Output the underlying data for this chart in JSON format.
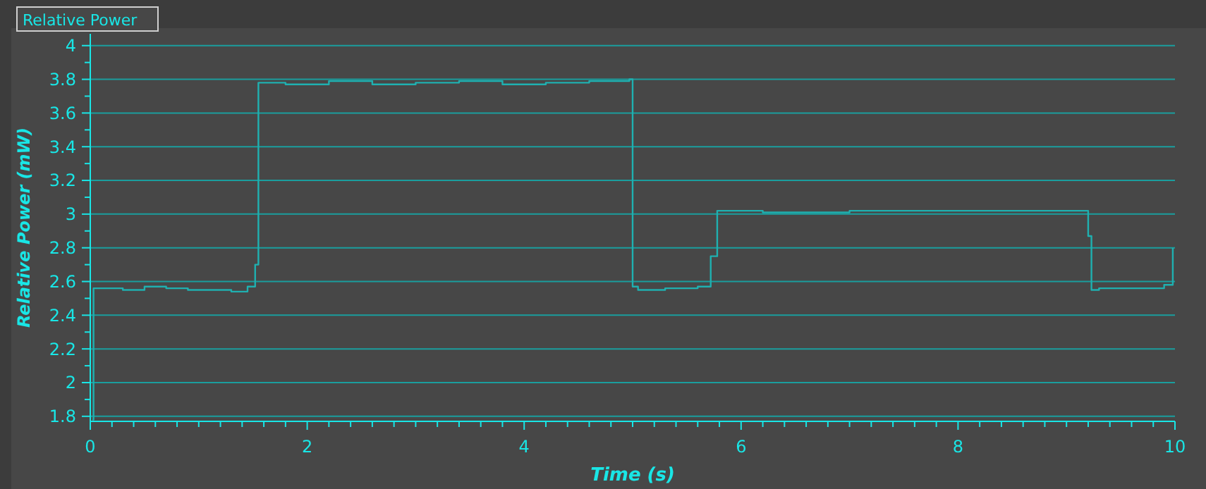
{
  "chart_data": {
    "type": "step",
    "title": "Relative Power",
    "xlabel": "Time  (s)",
    "ylabel": "Relative Power  (mW)",
    "x": [
      0.02,
      0.03,
      0.3,
      0.5,
      0.7,
      0.9,
      1.1,
      1.3,
      1.45,
      1.52,
      1.55,
      1.8,
      2.2,
      2.6,
      3.0,
      3.4,
      3.8,
      4.2,
      4.6,
      4.97,
      5.0,
      5.05,
      5.3,
      5.6,
      5.72,
      5.78,
      6.2,
      7.0,
      8.0,
      9.2,
      9.23,
      9.3,
      9.6,
      9.9,
      9.98
    ],
    "series": [
      {
        "color": "#1fb0b0",
        "values": [
          1.78,
          2.56,
          2.55,
          2.57,
          2.56,
          2.55,
          2.55,
          2.54,
          2.57,
          2.7,
          3.78,
          3.77,
          3.79,
          3.77,
          3.78,
          3.79,
          3.77,
          3.78,
          3.79,
          3.8,
          2.57,
          2.55,
          2.56,
          2.57,
          2.75,
          3.02,
          3.01,
          3.02,
          3.02,
          2.87,
          2.55,
          2.56,
          2.56,
          2.58,
          2.8
        ]
      }
    ],
    "xlim": [
      0,
      10
    ],
    "ylim": [
      1.77,
      4.07
    ],
    "xticks": [
      0,
      {
        "value": 0.2,
        "label": null
      },
      {
        "value": 0.4,
        "label": null
      },
      {
        "value": 0.6,
        "label": null
      },
      {
        "value": 0.8,
        "label": null
      },
      {
        "value": 1,
        "label": null
      },
      {
        "value": 1.2,
        "label": null
      },
      {
        "value": 1.4,
        "label": null
      },
      {
        "value": 1.6,
        "label": null
      },
      {
        "value": 1.8,
        "label": null
      },
      2,
      {
        "value": 2.2,
        "label": null
      },
      {
        "value": 2.4,
        "label": null
      },
      {
        "value": 2.6,
        "label": null
      },
      {
        "value": 2.8,
        "label": null
      },
      {
        "value": 3,
        "label": null
      },
      {
        "value": 3.2,
        "label": null
      },
      {
        "value": 3.4,
        "label": null
      },
      {
        "value": 3.6,
        "label": null
      },
      {
        "value": 3.8,
        "label": null
      },
      4,
      {
        "value": 4.2,
        "label": null
      },
      {
        "value": 4.4,
        "label": null
      },
      {
        "value": 4.6,
        "label": null
      },
      {
        "value": 4.8,
        "label": null
      },
      {
        "value": 5,
        "label": null
      },
      {
        "value": 5.2,
        "label": null
      },
      {
        "value": 5.4,
        "label": null
      },
      {
        "value": 5.6,
        "label": null
      },
      {
        "value": 5.8,
        "label": null
      },
      6,
      {
        "value": 6.2,
        "label": null
      },
      {
        "value": 6.4,
        "label": null
      },
      {
        "value": 6.6,
        "label": null
      },
      {
        "value": 6.8,
        "label": null
      },
      {
        "value": 7,
        "label": null
      },
      {
        "value": 7.2,
        "label": null
      },
      {
        "value": 7.4,
        "label": null
      },
      {
        "value": 7.6,
        "label": null
      },
      {
        "value": 7.8,
        "label": null
      },
      8,
      {
        "value": 8.2,
        "label": null
      },
      {
        "value": 8.4,
        "label": null
      },
      {
        "value": 8.6,
        "label": null
      },
      {
        "value": 8.8,
        "label": null
      },
      {
        "value": 9,
        "label": null
      },
      {
        "value": 9.2,
        "label": null
      },
      {
        "value": 9.4,
        "label": null
      },
      {
        "value": 9.6,
        "label": null
      },
      {
        "value": 9.8,
        "label": null
      },
      10
    ],
    "yticks": [
      1.8,
      {
        "value": 1.9,
        "label": null
      },
      2,
      {
        "value": 2.1,
        "label": null
      },
      2.2,
      {
        "value": 2.3,
        "label": null
      },
      2.4,
      {
        "value": 2.5,
        "label": null
      },
      2.6,
      {
        "value": 2.7,
        "label": null
      },
      2.8,
      {
        "value": 2.9,
        "label": null
      },
      3,
      {
        "value": 3.1,
        "label": null
      },
      3.2,
      {
        "value": 3.3,
        "label": null
      },
      3.4,
      {
        "value": 3.5,
        "label": null
      },
      3.6,
      {
        "value": 3.7,
        "label": null
      },
      3.8,
      {
        "value": 3.9,
        "label": null
      },
      4
    ],
    "grid": "y",
    "marker": "none",
    "line_style": "solid"
  }
}
